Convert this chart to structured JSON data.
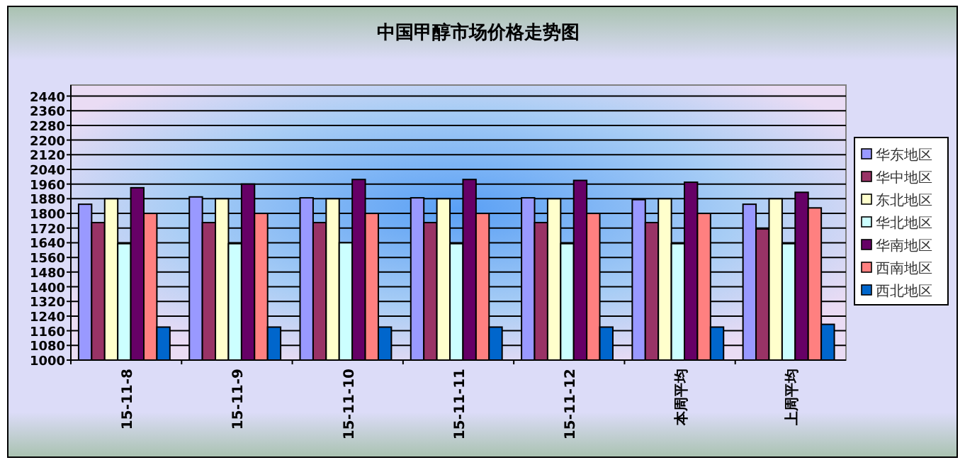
{
  "chart_data": {
    "type": "bar",
    "title": "中国甲醇市场价格走势图",
    "categories": [
      "15-11-8",
      "15-11-9",
      "15-11-10",
      "15-11-11",
      "15-11-12",
      "本周平均",
      "上周平均"
    ],
    "series": [
      {
        "name": "华东地区",
        "color": "#9999ff",
        "values": [
          1850,
          1890,
          1885,
          1885,
          1885,
          1875,
          1850
        ]
      },
      {
        "name": "华中地区",
        "color": "#993366",
        "values": [
          1750,
          1750,
          1750,
          1750,
          1750,
          1750,
          1715
        ]
      },
      {
        "name": "东北地区",
        "color": "#ffffcc",
        "values": [
          1880,
          1880,
          1880,
          1880,
          1880,
          1880,
          1880
        ]
      },
      {
        "name": "华北地区",
        "color": "#ccffff",
        "values": [
          1635,
          1635,
          1640,
          1635,
          1635,
          1635,
          1635
        ]
      },
      {
        "name": "华南地区",
        "color": "#660066",
        "values": [
          1940,
          1960,
          1985,
          1985,
          1980,
          1970,
          1915
        ]
      },
      {
        "name": "西南地区",
        "color": "#ff8080",
        "values": [
          1800,
          1800,
          1800,
          1800,
          1800,
          1800,
          1830
        ]
      },
      {
        "name": "西北地区",
        "color": "#0066cc",
        "values": [
          1180,
          1180,
          1180,
          1180,
          1180,
          1180,
          1195
        ]
      }
    ],
    "ylim": [
      1000,
      2500
    ],
    "yticks": [
      1000,
      1080,
      1160,
      1240,
      1320,
      1400,
      1480,
      1560,
      1640,
      1720,
      1800,
      1880,
      1960,
      2040,
      2120,
      2200,
      2280,
      2360,
      2440
    ],
    "grid": "y",
    "legend": "right"
  }
}
